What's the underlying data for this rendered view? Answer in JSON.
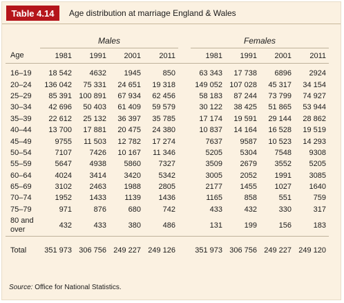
{
  "table": {
    "badge": "Table 4.14",
    "title": "Age distribution at marriage England & Wales",
    "groups": {
      "males": "Males",
      "females": "Females"
    },
    "age_header": "Age",
    "years": [
      "1981",
      "1991",
      "2001",
      "2011"
    ],
    "rows": [
      {
        "age": "16–19",
        "m": [
          "18 542",
          "4632",
          "1945",
          "850"
        ],
        "f": [
          "63 343",
          "17 738",
          "6896",
          "2924"
        ]
      },
      {
        "age": "20–24",
        "m": [
          "136 042",
          "75 331",
          "24 651",
          "19 318"
        ],
        "f": [
          "149 052",
          "107 028",
          "45 317",
          "34 154"
        ]
      },
      {
        "age": "25–29",
        "m": [
          "85 391",
          "100 891",
          "67 934",
          "62 456"
        ],
        "f": [
          "58 183",
          "87 244",
          "73 799",
          "74 927"
        ]
      },
      {
        "age": "30–34",
        "m": [
          "42 696",
          "50 403",
          "61 409",
          "59 579"
        ],
        "f": [
          "30 122",
          "38 425",
          "51 865",
          "53 944"
        ]
      },
      {
        "age": "35–39",
        "m": [
          "22 612",
          "25 132",
          "36 397",
          "35 785"
        ],
        "f": [
          "17 174",
          "19 591",
          "29 144",
          "28 862"
        ]
      },
      {
        "age": "40–44",
        "m": [
          "13 700",
          "17 881",
          "20 475",
          "24 380"
        ],
        "f": [
          "10 837",
          "14 164",
          "16 528",
          "19 519"
        ]
      },
      {
        "age": "45–49",
        "m": [
          "9755",
          "11 503",
          "12 782",
          "17 274"
        ],
        "f": [
          "7637",
          "9587",
          "10 523",
          "14 293"
        ]
      },
      {
        "age": "50–54",
        "m": [
          "7107",
          "7426",
          "10 167",
          "11 346"
        ],
        "f": [
          "5205",
          "5304",
          "7548",
          "9308"
        ]
      },
      {
        "age": "55–59",
        "m": [
          "5647",
          "4938",
          "5860",
          "7327"
        ],
        "f": [
          "3509",
          "2679",
          "3552",
          "5205"
        ]
      },
      {
        "age": "60–64",
        "m": [
          "4024",
          "3414",
          "3420",
          "5342"
        ],
        "f": [
          "3005",
          "2052",
          "1991",
          "3085"
        ]
      },
      {
        "age": "65–69",
        "m": [
          "3102",
          "2463",
          "1988",
          "2805"
        ],
        "f": [
          "2177",
          "1455",
          "1027",
          "1640"
        ]
      },
      {
        "age": "70–74",
        "m": [
          "1952",
          "1433",
          "1139",
          "1436"
        ],
        "f": [
          "1165",
          "858",
          "551",
          "759"
        ]
      },
      {
        "age": "75–79",
        "m": [
          "971",
          "876",
          "680",
          "742"
        ],
        "f": [
          "433",
          "432",
          "330",
          "317"
        ]
      }
    ],
    "last_row": {
      "age_line1": "80 and",
      "age_line2": "over",
      "m": [
        "432",
        "433",
        "380",
        "486"
      ],
      "f": [
        "131",
        "199",
        "156",
        "183"
      ]
    },
    "total": {
      "label": "Total",
      "m": [
        "351 973",
        "306 756",
        "249 227",
        "249 126"
      ],
      "f": [
        "351 973",
        "306 756",
        "249 227",
        "249 120"
      ]
    },
    "source_label": "Source:",
    "source_text": " Office for National Statistics."
  },
  "colors": {
    "badge": "#b5151b",
    "panel": "#fbf1e1",
    "rule": "#bfb29b"
  }
}
